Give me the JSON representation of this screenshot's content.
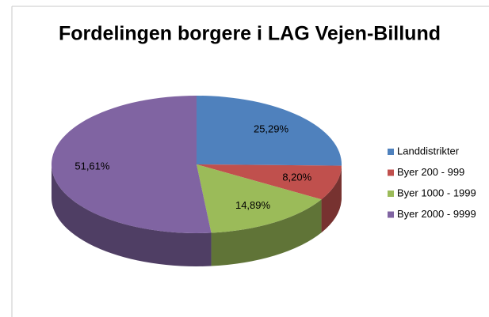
{
  "chart_data": {
    "type": "pie3d",
    "title": "Fordelingen borgere i LAG Vejen-Billund",
    "categories": [
      "Landdistrikter",
      "Byer 200 - 999",
      "Byer 1000 - 1999",
      "Byer 2000 - 9999"
    ],
    "values": [
      25.29,
      8.2,
      14.89,
      51.61
    ],
    "value_labels": [
      "25,29%",
      "8,20%",
      "14,89%",
      "51,61%"
    ],
    "colors": [
      "#4f81bd",
      "#c0504d",
      "#9bbb59",
      "#8064a2"
    ],
    "legend": "right"
  }
}
